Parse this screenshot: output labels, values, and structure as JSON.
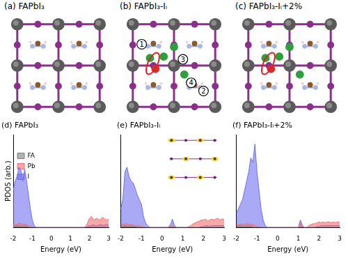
{
  "structures": [
    {
      "label": "(a) FAPbI₃"
    },
    {
      "label": "(b) FAPbI₃-Iᵢ",
      "site_labels": [
        "1",
        "2",
        "3",
        "4"
      ]
    },
    {
      "label": "(c) FAPbI₃-Iᵢ+2%"
    }
  ],
  "chart_data": [
    {
      "type": "area",
      "title": "(d) FAPbI₃",
      "x_label": "Energy (eV)",
      "y_label": "PDOS (arb.)",
      "x": [
        -2,
        -1.9,
        -1.8,
        -1.7,
        -1.6,
        -1.5,
        -1.4,
        -1.3,
        -1.2,
        -1.1,
        -1,
        -0.9,
        -0.8,
        -0.7,
        -0.6,
        -0.5,
        -0.4,
        -0.3,
        -0.2,
        -0.1,
        0,
        0.1,
        0.2,
        0.3,
        0.4,
        0.5,
        0.6,
        0.7,
        0.8,
        0.9,
        1,
        1.1,
        1.2,
        1.3,
        1.4,
        1.5,
        1.6,
        1.7,
        1.8,
        1.9,
        2,
        2.1,
        2.2,
        2.3,
        2.4,
        2.5,
        2.6,
        2.7,
        2.8,
        2.9,
        3
      ],
      "series": [
        {
          "name": "FA",
          "color": "#7f7f7f",
          "values": [
            0.1,
            0.1,
            0.2,
            0.1,
            0.1,
            0.1,
            0.1,
            0.1,
            0,
            0,
            0,
            0,
            0,
            0,
            0,
            0,
            0,
            0,
            0,
            0,
            0,
            0,
            0,
            0,
            0,
            0,
            0,
            0,
            0,
            0,
            0,
            0,
            0,
            0,
            0,
            0,
            0,
            0,
            0,
            0,
            0,
            0,
            0,
            0,
            0,
            0,
            0,
            0,
            0,
            0,
            0
          ]
        },
        {
          "name": "Pb",
          "color": "#f07070",
          "values": [
            0.3,
            0.4,
            0.3,
            0.5,
            0.4,
            0.3,
            0.4,
            0.3,
            0.2,
            0.1,
            0.05,
            0,
            0,
            0,
            0,
            0,
            0,
            0,
            0,
            0,
            0,
            0,
            0,
            0,
            0,
            0,
            0,
            0,
            0,
            0,
            0,
            0,
            0,
            0,
            0,
            0,
            0,
            0,
            0.1,
            0.5,
            1,
            1.2,
            0.8,
            0.9,
            1,
            0.8,
            0.9,
            1.1,
            0.9,
            0.8,
            0.9
          ]
        },
        {
          "name": "I",
          "color": "#7070f0",
          "values": [
            4,
            5,
            5.5,
            6.5,
            6.2,
            5,
            6.3,
            5,
            3.5,
            2,
            0.8,
            0.2,
            0,
            0,
            0,
            0,
            0,
            0,
            0,
            0,
            0,
            0,
            0,
            0,
            0,
            0,
            0,
            0,
            0,
            0,
            0,
            0,
            0,
            0,
            0,
            0,
            0,
            0,
            0,
            0.1,
            0.2,
            0.2,
            0.3,
            0.2,
            0.2,
            0.3,
            0.3,
            0.2,
            0.3,
            0.3,
            0.3
          ]
        }
      ],
      "xlim": [
        -2,
        3
      ],
      "xticks": [
        -2,
        -1,
        0,
        1,
        2,
        3
      ],
      "ylim": [
        0,
        10
      ],
      "tick_labels": "x",
      "legend": "upper center"
    },
    {
      "type": "area",
      "title": "(e) FAPbI₃-Iᵢ",
      "x_label": "Energy (eV)",
      "x": [
        -2,
        -1.9,
        -1.8,
        -1.7,
        -1.6,
        -1.5,
        -1.4,
        -1.3,
        -1.2,
        -1.1,
        -1,
        -0.9,
        -0.8,
        -0.7,
        -0.6,
        -0.5,
        -0.4,
        -0.3,
        -0.2,
        -0.1,
        0,
        0.1,
        0.2,
        0.3,
        0.4,
        0.5,
        0.6,
        0.7,
        0.8,
        0.9,
        1,
        1.1,
        1.2,
        1.3,
        1.4,
        1.5,
        1.6,
        1.7,
        1.8,
        1.9,
        2,
        2.1,
        2.2,
        2.3,
        2.4,
        2.5,
        2.6,
        2.7,
        2.8,
        2.9,
        3
      ],
      "series": [
        {
          "name": "FA",
          "color": "#7f7f7f",
          "values": [
            0.1,
            0.1,
            0.2,
            0.1,
            0.1,
            0.1,
            0.1,
            0.1,
            0,
            0,
            0,
            0,
            0,
            0,
            0,
            0,
            0,
            0,
            0,
            0,
            0,
            0,
            0,
            0,
            0,
            0,
            0,
            0,
            0,
            0,
            0,
            0,
            0,
            0,
            0,
            0,
            0,
            0,
            0,
            0,
            0,
            0,
            0,
            0,
            0,
            0,
            0,
            0,
            0,
            0,
            0
          ]
        },
        {
          "name": "Pb",
          "color": "#f07070",
          "values": [
            0.3,
            0.3,
            0.4,
            0.4,
            0.3,
            0.3,
            0.3,
            0.2,
            0.2,
            0.2,
            0.1,
            0.05,
            0,
            0,
            0,
            0,
            0,
            0,
            0,
            0,
            0,
            0,
            0,
            0,
            0.1,
            0.2,
            0.1,
            0,
            0,
            0,
            0,
            0,
            0,
            0.1,
            0.2,
            0.4,
            0.5,
            0.6,
            0.7,
            0.8,
            0.8,
            0.9,
            0.7,
            0.8,
            0.9,
            0.8,
            0.9,
            1,
            0.8,
            0.9,
            0.9
          ]
        },
        {
          "name": "I",
          "color": "#7070f0",
          "values": [
            2,
            3,
            6,
            6.5,
            5.5,
            5,
            4.8,
            4.2,
            3.5,
            3,
            2.5,
            1.2,
            0.5,
            0.2,
            0,
            0,
            0,
            0,
            0,
            0,
            0,
            0,
            0,
            0,
            0.3,
            0.9,
            0.2,
            0,
            0,
            0,
            0,
            0,
            0,
            0,
            0,
            0,
            0,
            0,
            0,
            0.1,
            0.1,
            0.2,
            0.2,
            0.1,
            0.2,
            0.2,
            0.2,
            0.2,
            0.2,
            0.2,
            0.2
          ]
        }
      ],
      "xlim": [
        -2,
        3
      ],
      "xticks": [
        -2,
        -1,
        0,
        1,
        2,
        3
      ],
      "ylim": [
        0,
        10
      ],
      "tick_labels": "x"
    },
    {
      "type": "area",
      "title": "(f) FAPbI₃-Iᵢ+2%",
      "x_label": "Energy (eV)",
      "x": [
        -2,
        -1.9,
        -1.8,
        -1.7,
        -1.6,
        -1.5,
        -1.4,
        -1.3,
        -1.2,
        -1.1,
        -1,
        -0.9,
        -0.8,
        -0.7,
        -0.6,
        -0.5,
        -0.4,
        -0.3,
        -0.2,
        -0.1,
        0,
        0.1,
        0.2,
        0.3,
        0.4,
        0.5,
        0.6,
        0.7,
        0.8,
        0.9,
        1,
        1.1,
        1.2,
        1.3,
        1.4,
        1.5,
        1.6,
        1.7,
        1.8,
        1.9,
        2,
        2.1,
        2.2,
        2.3,
        2.4,
        2.5,
        2.6,
        2.7,
        2.8,
        2.9,
        3
      ],
      "series": [
        {
          "name": "FA",
          "color": "#7f7f7f",
          "values": [
            0.1,
            0.1,
            0.2,
            0.1,
            0.1,
            0.1,
            0.1,
            0.1,
            0,
            0,
            0,
            0,
            0,
            0,
            0,
            0,
            0,
            0,
            0,
            0,
            0,
            0,
            0,
            0,
            0,
            0,
            0,
            0,
            0,
            0,
            0,
            0,
            0,
            0,
            0,
            0,
            0,
            0,
            0,
            0,
            0,
            0,
            0,
            0,
            0,
            0,
            0,
            0,
            0,
            0,
            0
          ]
        },
        {
          "name": "Pb",
          "color": "#f07070",
          "values": [
            0.3,
            0.3,
            0.3,
            0.4,
            0.3,
            0.4,
            0.4,
            0.3,
            0.3,
            0.2,
            0.1,
            0.05,
            0,
            0,
            0,
            0,
            0,
            0,
            0,
            0,
            0,
            0,
            0,
            0,
            0,
            0,
            0,
            0,
            0,
            0,
            0,
            0.5,
            0.1,
            0,
            0,
            0.2,
            0.3,
            0.4,
            0.4,
            0.5,
            0.6,
            0.5,
            0.6,
            0.5,
            0.6,
            0.6,
            0.5,
            0.6,
            0.5,
            0.6,
            0.6
          ]
        },
        {
          "name": "I",
          "color": "#7070f0",
          "values": [
            1.5,
            2,
            2.5,
            3,
            4,
            5,
            6,
            7.5,
            7,
            9,
            6,
            4,
            2,
            0.8,
            0.2,
            0,
            0,
            0,
            0,
            0,
            0,
            0,
            0,
            0,
            0,
            0,
            0,
            0,
            0,
            0,
            0,
            0.8,
            0.2,
            0,
            0,
            0,
            0,
            0,
            0,
            0.1,
            0.1,
            0.2,
            0.2,
            0.2,
            0.2,
            0.2,
            0.2,
            0.2,
            0.2,
            0.2,
            0.2
          ]
        }
      ],
      "xlim": [
        -2,
        3
      ],
      "xticks": [
        -2,
        -1,
        0,
        1,
        2,
        3
      ],
      "ylim": [
        0,
        10
      ],
      "tick_labels": "x"
    }
  ]
}
